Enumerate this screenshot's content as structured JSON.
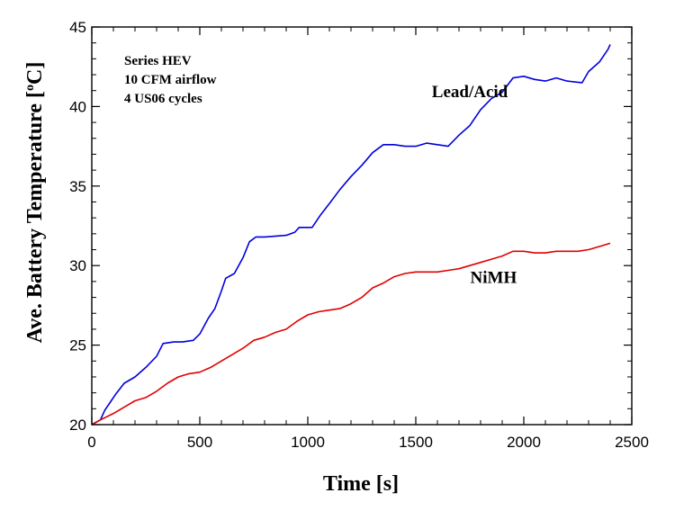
{
  "chart_data": {
    "type": "line",
    "xlabel": "Time [s]",
    "ylabel_main": "Ave. Battery Temperature [",
    "ylabel_sup": "o",
    "ylabel_end": "C]",
    "xlim": [
      0,
      2500
    ],
    "ylim": [
      20,
      45
    ],
    "xticks": [
      0,
      500,
      1000,
      1500,
      2000,
      2500
    ],
    "yticks": [
      20,
      25,
      30,
      35,
      40,
      45
    ],
    "grid": false,
    "info_box": [
      "Series HEV",
      "10 CFM airflow",
      "4 US06 cycles"
    ],
    "series": [
      {
        "name": "Lead/Acid",
        "color": "#0000dd",
        "points": [
          [
            0,
            20
          ],
          [
            40,
            20.3
          ],
          [
            60,
            20.9
          ],
          [
            90,
            21.5
          ],
          [
            110,
            21.9
          ],
          [
            150,
            22.6
          ],
          [
            200,
            23
          ],
          [
            250,
            23.6
          ],
          [
            300,
            24.3
          ],
          [
            330,
            25.1
          ],
          [
            380,
            25.2
          ],
          [
            420,
            25.2
          ],
          [
            470,
            25.3
          ],
          [
            500,
            25.7
          ],
          [
            540,
            26.7
          ],
          [
            570,
            27.3
          ],
          [
            600,
            28.4
          ],
          [
            620,
            29.2
          ],
          [
            660,
            29.5
          ],
          [
            700,
            30.5
          ],
          [
            730,
            31.5
          ],
          [
            760,
            31.8
          ],
          [
            800,
            31.8
          ],
          [
            900,
            31.9
          ],
          [
            940,
            32.1
          ],
          [
            960,
            32.4
          ],
          [
            1020,
            32.4
          ],
          [
            1060,
            33.2
          ],
          [
            1100,
            33.9
          ],
          [
            1150,
            34.8
          ],
          [
            1200,
            35.6
          ],
          [
            1250,
            36.3
          ],
          [
            1300,
            37.1
          ],
          [
            1350,
            37.6
          ],
          [
            1400,
            37.6
          ],
          [
            1450,
            37.5
          ],
          [
            1500,
            37.5
          ],
          [
            1550,
            37.7
          ],
          [
            1600,
            37.6
          ],
          [
            1650,
            37.5
          ],
          [
            1700,
            38.2
          ],
          [
            1750,
            38.8
          ],
          [
            1800,
            39.8
          ],
          [
            1850,
            40.5
          ],
          [
            1900,
            40.9
          ],
          [
            1950,
            41.8
          ],
          [
            2000,
            41.9
          ],
          [
            2050,
            41.7
          ],
          [
            2100,
            41.6
          ],
          [
            2150,
            41.8
          ],
          [
            2200,
            41.6
          ],
          [
            2270,
            41.5
          ],
          [
            2300,
            42.2
          ],
          [
            2350,
            42.8
          ],
          [
            2390,
            43.6
          ],
          [
            2400,
            43.9
          ]
        ]
      },
      {
        "name": "NiMH",
        "color": "#e00000",
        "points": [
          [
            0,
            20
          ],
          [
            40,
            20.3
          ],
          [
            100,
            20.7
          ],
          [
            150,
            21.1
          ],
          [
            200,
            21.5
          ],
          [
            250,
            21.7
          ],
          [
            300,
            22.1
          ],
          [
            350,
            22.6
          ],
          [
            400,
            23
          ],
          [
            450,
            23.2
          ],
          [
            500,
            23.3
          ],
          [
            550,
            23.6
          ],
          [
            600,
            24
          ],
          [
            650,
            24.4
          ],
          [
            700,
            24.8
          ],
          [
            750,
            25.3
          ],
          [
            800,
            25.5
          ],
          [
            850,
            25.8
          ],
          [
            900,
            26
          ],
          [
            950,
            26.5
          ],
          [
            1000,
            26.9
          ],
          [
            1050,
            27.1
          ],
          [
            1100,
            27.2
          ],
          [
            1150,
            27.3
          ],
          [
            1200,
            27.6
          ],
          [
            1250,
            28
          ],
          [
            1300,
            28.6
          ],
          [
            1350,
            28.9
          ],
          [
            1400,
            29.3
          ],
          [
            1450,
            29.5
          ],
          [
            1500,
            29.6
          ],
          [
            1550,
            29.6
          ],
          [
            1600,
            29.6
          ],
          [
            1650,
            29.7
          ],
          [
            1700,
            29.8
          ],
          [
            1750,
            30
          ],
          [
            1800,
            30.2
          ],
          [
            1850,
            30.4
          ],
          [
            1900,
            30.6
          ],
          [
            1950,
            30.9
          ],
          [
            2000,
            30.9
          ],
          [
            2050,
            30.8
          ],
          [
            2100,
            30.8
          ],
          [
            2150,
            30.9
          ],
          [
            2200,
            30.9
          ],
          [
            2250,
            30.9
          ],
          [
            2300,
            31
          ],
          [
            2350,
            31.2
          ],
          [
            2400,
            31.4
          ]
        ]
      }
    ],
    "annotations": [
      {
        "text": "Lead/Acid",
        "x": 1750,
        "y": 40.6
      },
      {
        "text": "NiMH",
        "x": 1860,
        "y": 28.9
      }
    ]
  }
}
